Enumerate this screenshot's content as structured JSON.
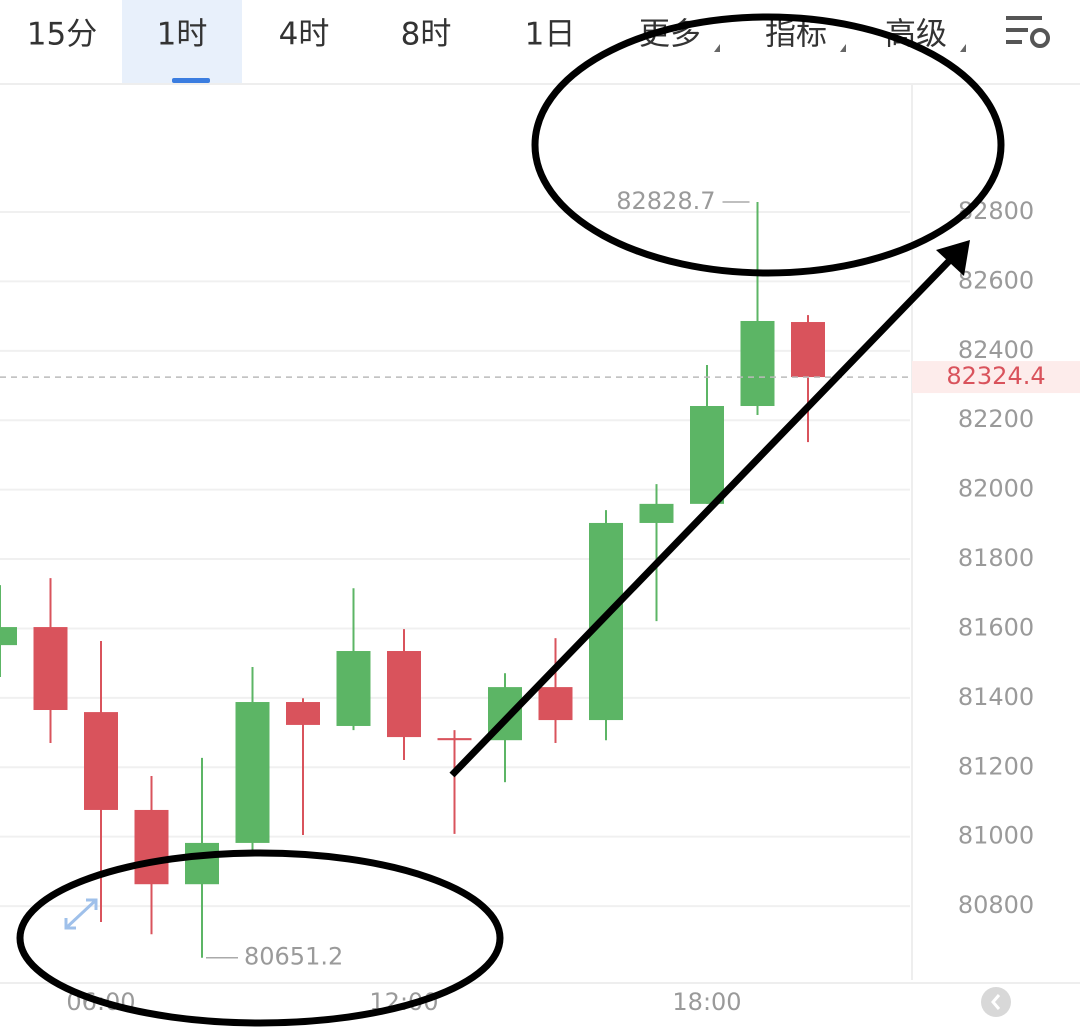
{
  "tabs": [
    "15分",
    "1时",
    "4时",
    "8时",
    "1日",
    "更多",
    "指标",
    "高级"
  ],
  "chart_data": {
    "type": "candlestick",
    "categories": [
      null,
      null,
      "06:00",
      null,
      null,
      null,
      null,
      null,
      "12:00",
      null,
      null,
      null,
      null,
      null,
      "18:00",
      null,
      null
    ],
    "open": [
      81552,
      81604,
      81359,
      81077,
      80863,
      80982,
      81388,
      81319,
      81535,
      81284,
      81278,
      81431,
      81336,
      81904,
      81959,
      82241,
      82483
    ],
    "high": [
      81725,
      81745,
      81564,
      81175,
      81227,
      81489,
      81399,
      81716,
      81598,
      81307,
      81471,
      81572,
      81941,
      82016,
      82359,
      82828.7,
      82503
    ],
    "low": [
      81460,
      81270,
      80754,
      80719,
      80651.2,
      80961,
      81005,
      81307,
      81221,
      81008,
      81157,
      81270,
      81278,
      81621,
      81959,
      82215,
      82137
    ],
    "close": [
      81604,
      81365,
      81077,
      80863,
      80982,
      81388,
      81322,
      81535,
      81287,
      81278,
      81431,
      81336,
      81904,
      81959,
      82241,
      82486,
      82324.4
    ],
    "up_color": "#5cb565",
    "down_color": "#d9535c",
    "ylim": [
      80587,
      83166
    ],
    "yticks": [
      80800,
      81000,
      81200,
      81400,
      81600,
      81800,
      82000,
      82200,
      82400,
      82600,
      82800
    ],
    "grid": true
  }
}
